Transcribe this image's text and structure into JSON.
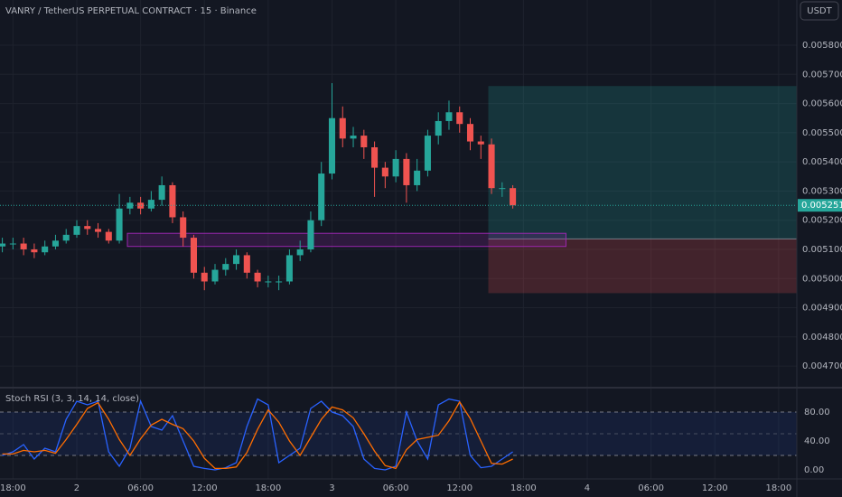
{
  "chart_data": [
    {
      "type": "candlestick",
      "title": "VANRY / TetherUS PERPETUAL CONTRACT · 15 · Binance",
      "currency": "USDT",
      "x": [
        -7,
        -6,
        -5,
        -4,
        -3,
        -2,
        -1,
        0,
        1,
        2,
        3,
        4,
        5,
        6,
        7,
        8,
        9,
        10,
        11,
        12,
        13,
        14,
        15,
        16,
        17,
        18,
        19,
        20,
        21,
        22,
        23,
        24,
        25,
        26,
        27,
        28,
        29,
        30,
        31,
        32,
        33,
        34,
        35,
        36,
        37,
        38,
        39,
        40,
        41
      ],
      "open": [
        0.00511,
        0.00512,
        0.00512,
        0.0051,
        0.00509,
        0.00511,
        0.00513,
        0.00515,
        0.00518,
        0.00517,
        0.00516,
        0.00513,
        0.00524,
        0.00526,
        0.00524,
        0.00527,
        0.00532,
        0.00521,
        0.00514,
        0.00502,
        0.00499,
        0.00503,
        0.00505,
        0.00508,
        0.00502,
        0.00499,
        0.00499,
        0.00499,
        0.00508,
        0.0051,
        0.0052,
        0.00536,
        0.00555,
        0.00548,
        0.00549,
        0.00545,
        0.00538,
        0.00535,
        0.00541,
        0.00532,
        0.00537,
        0.00549,
        0.00554,
        0.00557,
        0.00553,
        0.00547,
        0.00546,
        0.00531,
        0.00531
      ],
      "high": [
        0.00514,
        0.00514,
        0.00514,
        0.00512,
        0.00513,
        0.00515,
        0.00517,
        0.0052,
        0.0052,
        0.00519,
        0.00517,
        0.00529,
        0.00528,
        0.00528,
        0.0053,
        0.00535,
        0.00533,
        0.00523,
        0.00515,
        0.00504,
        0.00505,
        0.00507,
        0.0051,
        0.00509,
        0.00503,
        0.00501,
        0.00501,
        0.0051,
        0.00513,
        0.00523,
        0.0054,
        0.00567,
        0.00559,
        0.00552,
        0.00551,
        0.00547,
        0.0054,
        0.00544,
        0.00543,
        0.00541,
        0.00551,
        0.00557,
        0.00561,
        0.00559,
        0.00555,
        0.00549,
        0.00548,
        0.00533,
        0.00532
      ],
      "low": [
        0.00509,
        0.0051,
        0.00508,
        0.00507,
        0.00508,
        0.0051,
        0.00512,
        0.00514,
        0.00515,
        0.00514,
        0.00512,
        0.00512,
        0.00522,
        0.00522,
        0.00523,
        0.00525,
        0.00519,
        0.00511,
        0.005,
        0.00496,
        0.00498,
        0.00501,
        0.00503,
        0.005,
        0.00497,
        0.00497,
        0.00496,
        0.00498,
        0.00506,
        0.00509,
        0.00518,
        0.00534,
        0.00545,
        0.00545,
        0.00541,
        0.00528,
        0.00531,
        0.00533,
        0.00526,
        0.0053,
        0.00535,
        0.00546,
        0.00551,
        0.0055,
        0.00544,
        0.00541,
        0.00529,
        0.00528,
        0.00524
      ],
      "close": [
        0.00512,
        0.00512,
        0.0051,
        0.00509,
        0.00511,
        0.00513,
        0.00515,
        0.00518,
        0.00517,
        0.00516,
        0.00513,
        0.00524,
        0.00526,
        0.00524,
        0.00527,
        0.00532,
        0.00521,
        0.00514,
        0.00502,
        0.00499,
        0.00503,
        0.00505,
        0.00508,
        0.00502,
        0.00499,
        0.00499,
        0.00499,
        0.00508,
        0.0051,
        0.0052,
        0.00536,
        0.00555,
        0.00548,
        0.00549,
        0.00545,
        0.00538,
        0.00535,
        0.00541,
        0.00532,
        0.00537,
        0.00549,
        0.00554,
        0.00557,
        0.00553,
        0.00547,
        0.00546,
        0.00531,
        0.00531,
        0.005251
      ],
      "up_color": "#26a69a",
      "down_color": "#ef5350",
      "last_price": 0.005251,
      "xlim": [
        -7.22,
        67.71
      ],
      "ylim": [
        0.004629,
        0.005955
      ],
      "yticks": [
        {
          "value": 0.0047,
          "label": "0.004700"
        },
        {
          "value": 0.0048,
          "label": "0.004800"
        },
        {
          "value": 0.0049,
          "label": "0.004900"
        },
        {
          "value": 0.005,
          "label": "0.005000"
        },
        {
          "value": 0.0051,
          "label": "0.005100"
        },
        {
          "value": 0.0052,
          "label": "0.005200"
        },
        {
          "value": 0.0053,
          "label": "0.005300"
        },
        {
          "value": 0.0054,
          "label": "0.005400"
        },
        {
          "value": 0.0055,
          "label": "0.005500"
        },
        {
          "value": 0.0056,
          "label": "0.005600"
        },
        {
          "value": 0.0057,
          "label": "0.005700"
        },
        {
          "value": 0.0058,
          "label": "0.005800"
        }
      ],
      "zone": {
        "x": [
          4.76,
          46.0
        ],
        "y": [
          0.00511,
          0.005155
        ],
        "color": "#9c27b0"
      },
      "position": {
        "x_start": 38.7,
        "entry": 0.005136,
        "target": 0.00566,
        "stop": 0.00495,
        "profit_color": "#26a69a",
        "loss_color": "#ef5350"
      },
      "grid": true
    },
    {
      "type": "line",
      "title": "Stoch RSI (3, 3, 14, 14, close)",
      "x": [
        -7,
        -6,
        -5,
        -4,
        -3,
        -2,
        -1,
        0,
        1,
        2,
        3,
        4,
        5,
        6,
        7,
        8,
        9,
        10,
        11,
        12,
        13,
        14,
        15,
        16,
        17,
        18,
        19,
        20,
        21,
        22,
        23,
        24,
        25,
        26,
        27,
        28,
        29,
        30,
        31,
        32,
        33,
        34,
        35,
        36,
        37,
        38,
        39,
        40,
        41
      ],
      "series": [
        {
          "color": "#2962ff",
          "values": [
            20,
            25,
            35,
            15,
            30,
            25,
            70,
            95,
            90,
            95,
            25,
            5,
            30,
            95,
            60,
            55,
            75,
            40,
            5,
            2,
            0,
            3,
            10,
            60,
            98,
            90,
            10,
            20,
            30,
            85,
            95,
            80,
            75,
            60,
            15,
            2,
            0,
            5,
            80,
            40,
            15,
            90,
            98,
            95,
            20,
            3,
            5,
            15,
            25
          ]
        },
        {
          "color": "#ff6d00",
          "values": [
            22,
            22,
            27,
            25,
            27,
            23,
            42,
            63,
            85,
            93,
            70,
            42,
            20,
            43,
            62,
            70,
            63,
            57,
            40,
            16,
            2,
            2,
            4,
            24,
            56,
            83,
            66,
            40,
            20,
            45,
            70,
            87,
            83,
            72,
            50,
            26,
            6,
            2,
            28,
            42,
            45,
            48,
            68,
            94,
            71,
            40,
            9,
            8,
            15
          ]
        }
      ],
      "bands": [
        20,
        80
      ],
      "midline": 50,
      "xlim": [
        -7.22,
        67.71
      ],
      "ylim": [
        -12.5,
        112.5
      ],
      "yticks": [
        {
          "value": 0,
          "label": "0.00"
        },
        {
          "value": 40,
          "label": "40.00"
        },
        {
          "value": 80,
          "label": "80.00"
        }
      ],
      "xticks": [
        {
          "value": -6,
          "label": "18:00"
        },
        {
          "value": 0,
          "label": "2"
        },
        {
          "value": 6,
          "label": "06:00"
        },
        {
          "value": 12,
          "label": "12:00"
        },
        {
          "value": 18,
          "label": "18:00"
        },
        {
          "value": 24,
          "label": "3"
        },
        {
          "value": 30,
          "label": "06:00"
        },
        {
          "value": 36,
          "label": "12:00"
        },
        {
          "value": 42,
          "label": "18:00"
        },
        {
          "value": 48,
          "label": "4"
        },
        {
          "value": 54,
          "label": "06:00"
        },
        {
          "value": 60,
          "label": "12:00"
        },
        {
          "value": 66,
          "label": "18:00"
        }
      ]
    }
  ]
}
